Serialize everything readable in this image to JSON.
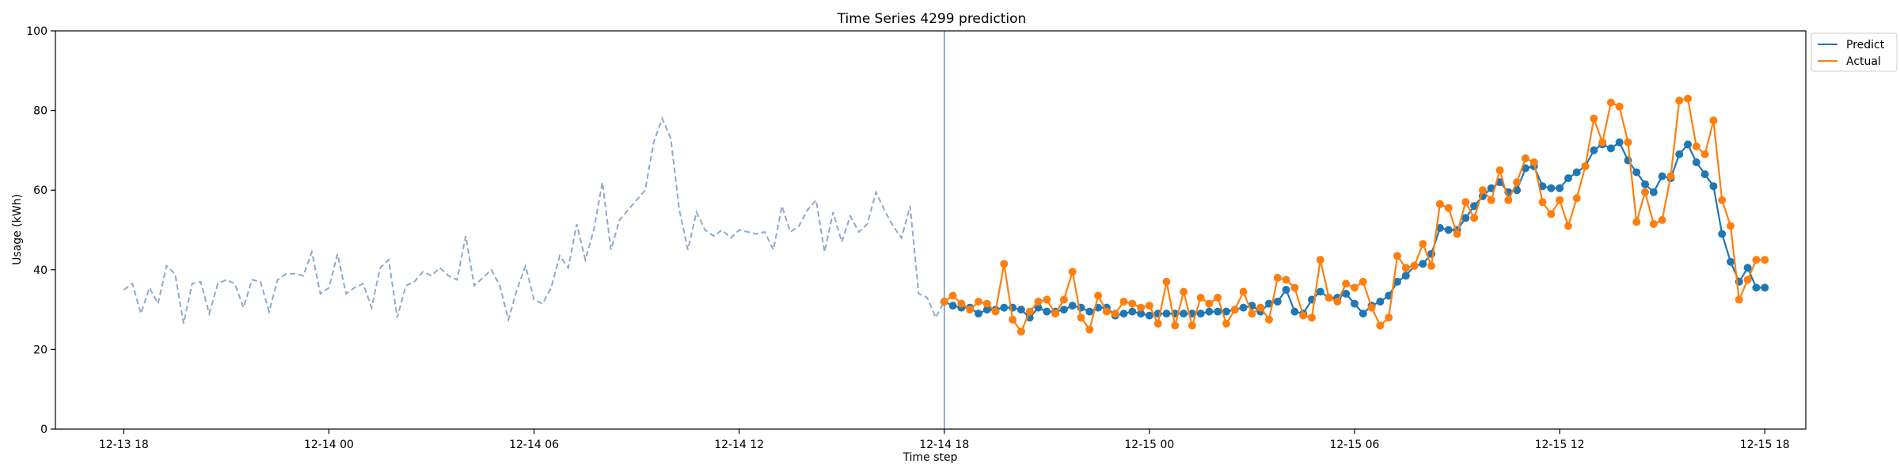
{
  "chart_data": {
    "type": "line",
    "title": "Time Series 4299 prediction",
    "xlabel": "Time step",
    "ylabel": "Usage (kWh)",
    "ylim": [
      0,
      100
    ],
    "yticks": [
      0,
      20,
      40,
      60,
      80,
      100
    ],
    "x_unit": "hours",
    "xlim": [
      -20.0,
      28.0
    ],
    "xticks": [
      {
        "value": -18,
        "label": "12-13 18"
      },
      {
        "value": -12,
        "label": "12-14 00"
      },
      {
        "value": -6,
        "label": "12-14 06"
      },
      {
        "value": 0,
        "label": "12-14 12"
      },
      {
        "value": 6,
        "label": "12-14 18"
      },
      {
        "value": 12,
        "label": "12-15 00"
      },
      {
        "value": 18,
        "label": "12-15 06"
      },
      {
        "value": 24,
        "label": "12-15 12"
      },
      {
        "value": 30,
        "label": "12-15 18"
      }
    ],
    "grid": false,
    "legend_position": "outside top-right",
    "divider_x": 6.0,
    "history": {
      "color": "#8da9cc",
      "style": "dashed",
      "x": [
        -18.0,
        -17.75,
        -17.5,
        -17.25,
        -17.0,
        -16.75,
        -16.5,
        -16.25,
        -16.0,
        -15.75,
        -15.5,
        -15.25,
        -15.0,
        -14.75,
        -14.5,
        -14.25,
        -14.0,
        -13.75,
        -13.5,
        -13.25,
        -13.0,
        -12.75,
        -12.5,
        -12.25,
        -12.0,
        -11.75,
        -11.5,
        -11.25,
        -11.0,
        -10.75,
        -10.5,
        -10.25,
        -10.0,
        -9.75,
        -9.5,
        -9.25,
        -9.0,
        -8.75,
        -8.5,
        -8.25,
        -8.0,
        -7.75,
        -7.5,
        -7.25,
        -7.0,
        -6.75,
        -6.5,
        -6.25,
        -6.0,
        -5.75,
        -5.5,
        -5.25,
        -5.0,
        -4.75,
        -4.5,
        -4.25,
        -4.0,
        -3.75,
        -3.5,
        -3.25,
        -3.0,
        -2.75,
        -2.5,
        -2.25,
        -2.0,
        -1.75,
        -1.5,
        -1.25,
        -1.0,
        -0.75,
        -0.5,
        -0.25,
        0.0,
        0.25,
        0.5,
        0.75,
        1.0,
        1.25,
        1.5,
        1.75,
        2.0,
        2.25,
        2.5,
        2.75,
        3.0,
        3.25,
        3.5,
        3.75,
        4.0,
        4.25,
        4.5,
        4.75,
        5.0,
        5.25,
        5.5,
        5.75,
        6.0
      ],
      "values": [
        35,
        36.5,
        29,
        35.5,
        31.5,
        41,
        39,
        26.5,
        36.5,
        37,
        29,
        36.5,
        37.5,
        36.5,
        30.5,
        37.5,
        37,
        29.5,
        37.5,
        39,
        39,
        38.5,
        44.5,
        34,
        35.5,
        44,
        34,
        35.5,
        36.5,
        30.5,
        40.5,
        42.5,
        28,
        36,
        37,
        39.5,
        38.5,
        40.5,
        38.5,
        37.5,
        48.5,
        36,
        38,
        40,
        36,
        27.5,
        35,
        41,
        32.5,
        31.5,
        35.5,
        43.5,
        40.5,
        51.5,
        42.5,
        50,
        62,
        45,
        52.5,
        55,
        57.5,
        60,
        72,
        78,
        73,
        55,
        45,
        54.5,
        50,
        48.5,
        50,
        48,
        50,
        49.5,
        49,
        49.5,
        45,
        56,
        49.5,
        51,
        55,
        57.5,
        44.5,
        54.5,
        47,
        53.5,
        49.5,
        51.5,
        59.5,
        55,
        51,
        48,
        56,
        34,
        33,
        28,
        32
      ]
    },
    "series": [
      {
        "name": "Predict",
        "color": "#1f77b4",
        "x": [
          6.0,
          6.25,
          6.5,
          6.75,
          7.0,
          7.25,
          7.5,
          7.75,
          8.0,
          8.25,
          8.5,
          8.75,
          9.0,
          9.25,
          9.5,
          9.75,
          10.0,
          10.25,
          10.5,
          10.75,
          11.0,
          11.25,
          11.5,
          11.75,
          12.0,
          12.25,
          12.5,
          12.75,
          13.0,
          13.25,
          13.5,
          13.75,
          14.0,
          14.25,
          14.5,
          14.75,
          15.0,
          15.25,
          15.5,
          15.75,
          16.0,
          16.25,
          16.5,
          16.75,
          17.0,
          17.25,
          17.5,
          17.75,
          18.0,
          18.25,
          18.5,
          18.75,
          19.0,
          19.25,
          19.5,
          19.75,
          20.0,
          20.25,
          20.5,
          20.75,
          21.0,
          21.25,
          21.5,
          21.75,
          22.0,
          22.25,
          22.5,
          22.75,
          23.0,
          23.25,
          23.5,
          23.75,
          24.0,
          24.25,
          24.5,
          24.75,
          25.0,
          25.25,
          25.5,
          25.75,
          26.0,
          26.25,
          26.5,
          26.75,
          27.0,
          27.25,
          27.5,
          27.75,
          28.0,
          28.25,
          28.5,
          28.75,
          29.0,
          29.25,
          29.5,
          29.75,
          30.0
        ],
        "values": [
          32,
          31,
          30.5,
          30.5,
          29,
          30,
          30,
          30.5,
          30.5,
          30,
          28,
          30.5,
          29.5,
          29.5,
          30,
          31,
          30.5,
          29.5,
          30.5,
          30.5,
          28.5,
          29,
          29.5,
          29,
          28.5,
          29,
          29,
          29,
          29,
          29,
          29,
          29.5,
          29.5,
          29.5,
          30,
          30.5,
          31,
          29.5,
          31.5,
          32,
          35,
          29.5,
          29,
          32.5,
          34.5,
          33,
          33,
          34,
          31.5,
          29,
          31,
          32,
          33.5,
          37,
          38.5,
          41,
          41.5,
          44,
          50.5,
          50,
          50,
          53,
          56,
          58.5,
          60.5,
          62,
          59.5,
          60,
          65.5,
          66,
          61,
          60.5,
          60.5,
          63,
          64.5,
          66,
          70,
          71.5,
          70.5,
          72,
          67.5,
          64.5,
          61.5,
          59.5,
          63.5,
          63,
          69,
          71.5,
          67,
          64,
          61,
          49,
          42,
          37,
          40.5,
          35.5,
          35.5
        ]
      },
      {
        "name": "Actual",
        "color": "#ff7f0e",
        "x": [
          6.0,
          6.25,
          6.5,
          6.75,
          7.0,
          7.25,
          7.5,
          7.75,
          8.0,
          8.25,
          8.5,
          8.75,
          9.0,
          9.25,
          9.5,
          9.75,
          10.0,
          10.25,
          10.5,
          10.75,
          11.0,
          11.25,
          11.5,
          11.75,
          12.0,
          12.25,
          12.5,
          12.75,
          13.0,
          13.25,
          13.5,
          13.75,
          14.0,
          14.25,
          14.5,
          14.75,
          15.0,
          15.25,
          15.5,
          15.75,
          16.0,
          16.25,
          16.5,
          16.75,
          17.0,
          17.25,
          17.5,
          17.75,
          18.0,
          18.25,
          18.5,
          18.75,
          19.0,
          19.25,
          19.5,
          19.75,
          20.0,
          20.25,
          20.5,
          20.75,
          21.0,
          21.25,
          21.5,
          21.75,
          22.0,
          22.25,
          22.5,
          22.75,
          23.0,
          23.25,
          23.5,
          23.75,
          24.0,
          24.25,
          24.5,
          24.75,
          25.0,
          25.25,
          25.5,
          25.75,
          26.0,
          26.25,
          26.5,
          26.75,
          27.0,
          27.25,
          27.5,
          27.75,
          28.0,
          28.25,
          28.5,
          28.75,
          29.0,
          29.25,
          29.5,
          29.75,
          30.0
        ],
        "values": [
          32,
          33.5,
          31.5,
          30,
          32,
          31.5,
          29.5,
          41.5,
          27.5,
          24.5,
          29.5,
          32,
          32.5,
          29,
          32.5,
          39.5,
          28,
          25,
          33.5,
          29.5,
          29,
          32,
          31.5,
          30.5,
          31,
          26.5,
          37,
          26,
          34.5,
          26,
          33,
          31.5,
          33,
          26.5,
          30,
          34.5,
          29,
          30.5,
          27.5,
          38,
          37.5,
          35.5,
          28.5,
          28,
          42.5,
          33,
          32,
          36.5,
          35.5,
          37,
          30.5,
          26,
          28,
          43.5,
          40.5,
          41,
          46.5,
          41,
          56.5,
          55.5,
          49,
          57,
          53,
          60,
          57.5,
          65,
          57.5,
          62,
          68,
          67,
          57,
          54,
          57.5,
          51,
          58,
          66,
          78,
          72,
          82,
          81,
          72,
          52,
          59.5,
          51.5,
          52.5,
          63.5,
          82.5,
          83,
          71,
          69,
          77.5,
          57.5,
          51,
          32.5,
          37.5,
          42.5,
          42.5
        ]
      }
    ]
  }
}
